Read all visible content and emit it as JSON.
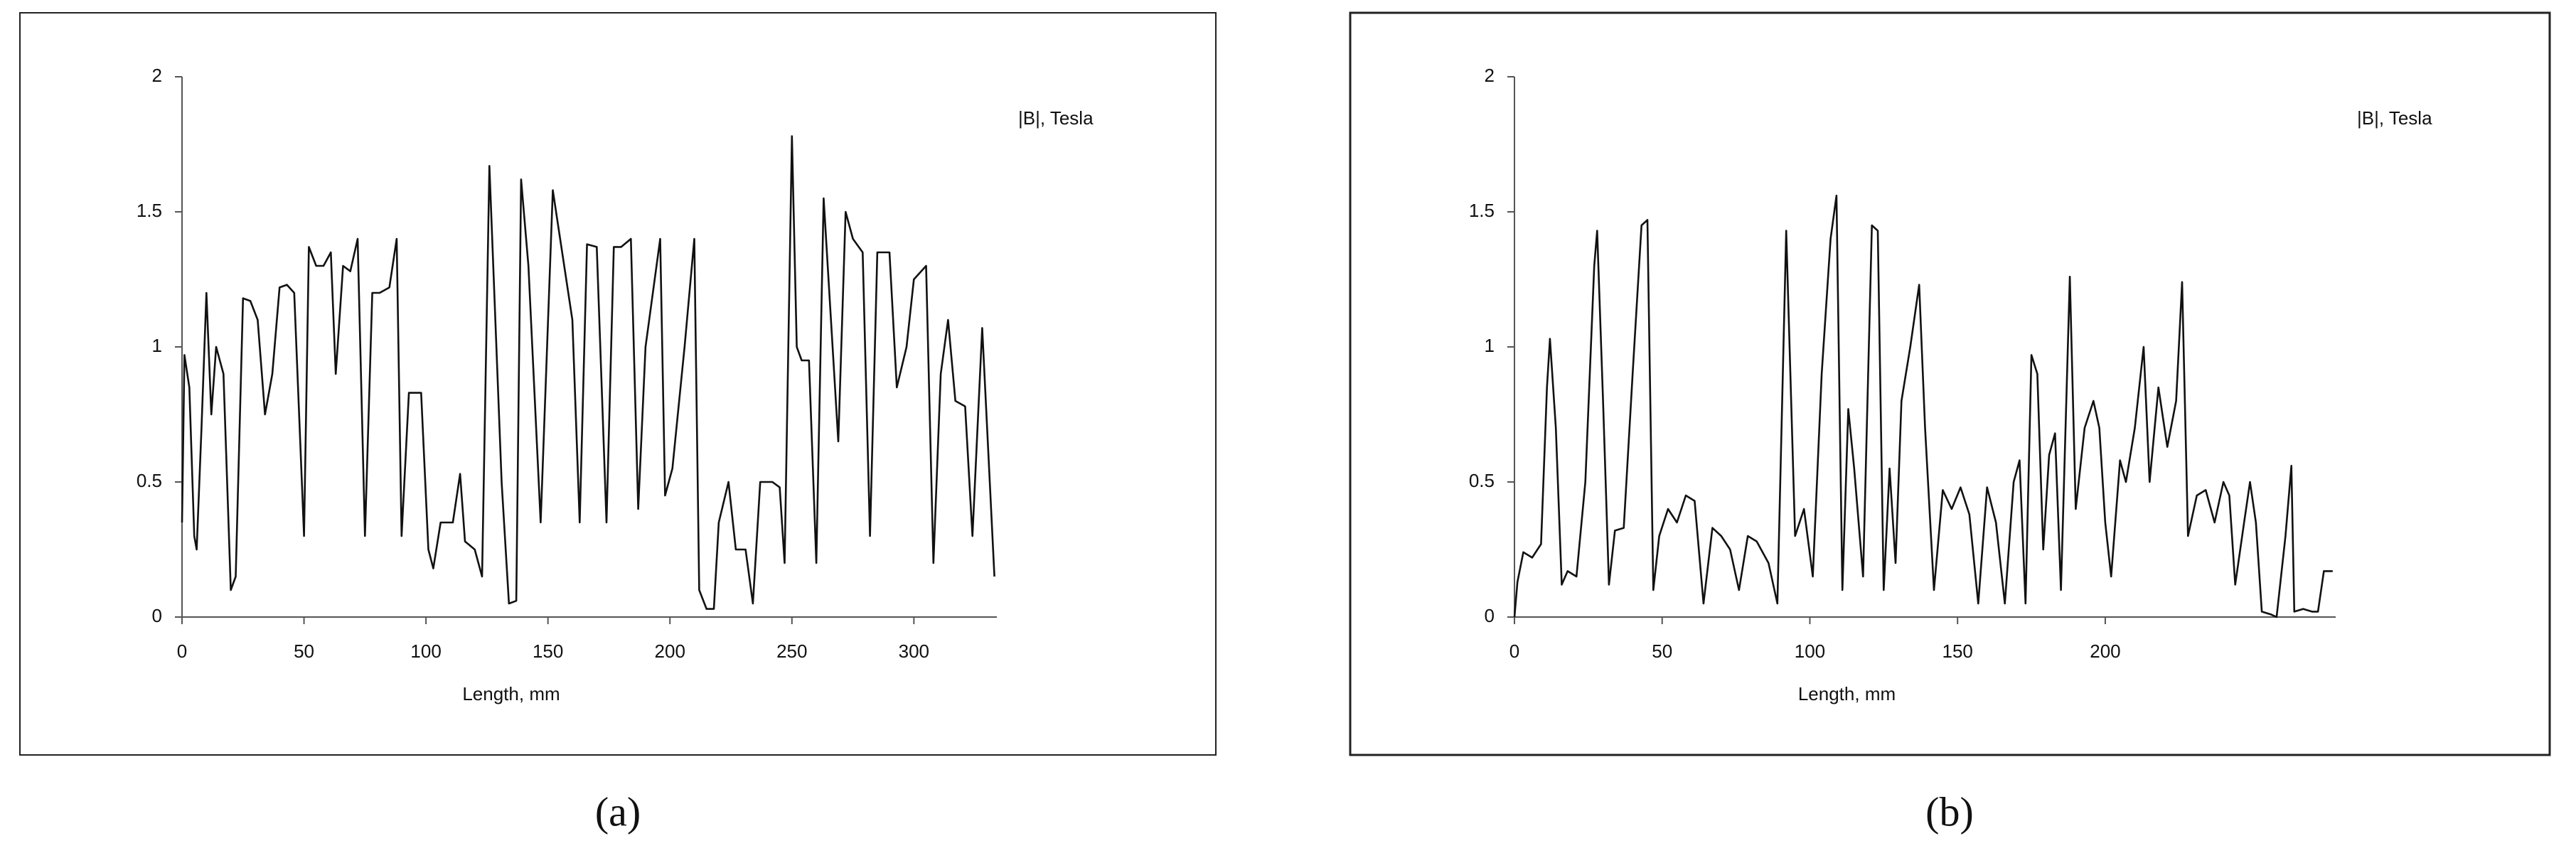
{
  "chart_data": [
    {
      "type": "line",
      "panel": "(a)",
      "legend": "|B|, Tesla",
      "x_label": "Length, mm",
      "xlim": [
        0,
        334
      ],
      "xticks": [
        0,
        50,
        100,
        150,
        200,
        250,
        300
      ],
      "ylim": [
        0,
        2
      ],
      "yticks": [
        0,
        0.5,
        1,
        1.5,
        2
      ],
      "x": [
        0,
        1,
        3,
        5,
        6,
        8,
        10,
        12,
        14,
        17,
        20,
        22,
        25,
        28,
        31,
        34,
        37,
        40,
        43,
        46,
        50,
        52,
        55,
        58,
        61,
        63,
        66,
        69,
        72,
        75,
        78,
        81,
        85,
        88,
        90,
        93,
        98,
        101,
        103,
        106,
        111,
        114,
        116,
        120,
        123,
        126,
        128,
        131,
        134,
        137,
        139,
        142,
        147,
        152,
        155,
        160,
        163,
        166,
        170,
        174,
        177,
        180,
        184,
        187,
        190,
        193,
        196,
        198,
        201,
        206,
        210,
        212,
        215,
        218,
        220,
        224,
        227,
        231,
        234,
        237,
        242,
        245,
        247,
        250,
        252,
        254,
        257,
        260,
        263,
        266,
        269,
        272,
        275,
        279,
        282,
        285,
        290,
        293,
        297,
        300,
        305,
        308,
        311,
        314,
        317,
        321,
        324,
        328,
        333
      ],
      "series": [
        {
          "color": "#111111",
          "values": [
            0.35,
            0.97,
            0.85,
            0.3,
            0.25,
            0.7,
            1.2,
            0.75,
            1.0,
            0.9,
            0.1,
            0.15,
            1.18,
            1.17,
            1.1,
            0.75,
            0.9,
            1.22,
            1.23,
            1.2,
            0.3,
            1.37,
            1.3,
            1.3,
            1.35,
            0.9,
            1.3,
            1.28,
            1.4,
            0.3,
            1.2,
            1.2,
            1.22,
            1.4,
            0.3,
            0.83,
            0.83,
            0.25,
            0.18,
            0.35,
            0.35,
            0.53,
            0.28,
            0.25,
            0.15,
            1.67,
            1.2,
            0.5,
            0.05,
            0.06,
            1.62,
            1.3,
            0.35,
            1.58,
            1.4,
            1.1,
            0.35,
            1.38,
            1.37,
            0.35,
            1.37,
            1.37,
            1.4,
            0.4,
            1.0,
            1.2,
            1.4,
            0.45,
            0.55,
            1.0,
            1.4,
            0.1,
            0.03,
            0.03,
            0.35,
            0.5,
            0.25,
            0.25,
            0.05,
            0.5,
            0.5,
            0.48,
            0.2,
            1.78,
            1.0,
            0.95,
            0.95,
            0.2,
            1.55,
            1.1,
            0.65,
            1.5,
            1.4,
            1.35,
            0.3,
            1.35,
            1.35,
            0.85,
            1.0,
            1.25,
            1.3,
            0.2,
            0.9,
            1.1,
            0.8,
            0.78,
            0.3,
            1.07,
            0.15
          ]
        }
      ]
    },
    {
      "type": "line",
      "panel": "(b)",
      "legend": "|B|, Tesla",
      "x_label": "Length, mm",
      "xlim": [
        0,
        278
      ],
      "xticks": [
        0,
        50,
        100,
        150,
        200
      ],
      "ylim": [
        0,
        2
      ],
      "yticks": [
        0,
        0.5,
        1,
        1.5,
        2
      ],
      "x": [
        0,
        1,
        3,
        6,
        9,
        11,
        12,
        14,
        16,
        18,
        21,
        24,
        27,
        28,
        30,
        32,
        34,
        37,
        40,
        43,
        45,
        47,
        49,
        52,
        55,
        58,
        61,
        64,
        67,
        70,
        73,
        76,
        79,
        82,
        86,
        89,
        92,
        95,
        98,
        101,
        104,
        107,
        109,
        111,
        113,
        115,
        118,
        121,
        123,
        125,
        127,
        129,
        131,
        134,
        137,
        139,
        142,
        145,
        148,
        151,
        154,
        157,
        160,
        163,
        166,
        169,
        171,
        173,
        175,
        177,
        179,
        181,
        183,
        185,
        188,
        190,
        193,
        196,
        198,
        200,
        202,
        205,
        207,
        210,
        213,
        215,
        218,
        221,
        224,
        226,
        228,
        231,
        234,
        237,
        240,
        242,
        244,
        247,
        249,
        251,
        253,
        256,
        258,
        261,
        263,
        264,
        267,
        270,
        272,
        274,
        277
      ],
      "series": [
        {
          "color": "#111111",
          "values": [
            0.0,
            0.13,
            0.24,
            0.22,
            0.27,
            0.85,
            1.03,
            0.7,
            0.12,
            0.17,
            0.15,
            0.5,
            1.3,
            1.43,
            0.8,
            0.12,
            0.32,
            0.33,
            0.9,
            1.45,
            1.47,
            0.1,
            0.3,
            0.4,
            0.35,
            0.45,
            0.43,
            0.05,
            0.33,
            0.3,
            0.25,
            0.1,
            0.3,
            0.28,
            0.2,
            0.05,
            1.43,
            0.3,
            0.4,
            0.15,
            0.9,
            1.4,
            1.56,
            0.1,
            0.77,
            0.55,
            0.15,
            1.45,
            1.43,
            0.1,
            0.55,
            0.2,
            0.8,
            1.0,
            1.23,
            0.7,
            0.1,
            0.47,
            0.4,
            0.48,
            0.38,
            0.05,
            0.48,
            0.35,
            0.05,
            0.5,
            0.58,
            0.05,
            0.97,
            0.9,
            0.25,
            0.6,
            0.68,
            0.1,
            1.26,
            0.4,
            0.7,
            0.8,
            0.7,
            0.35,
            0.15,
            0.58,
            0.5,
            0.7,
            1.0,
            0.5,
            0.85,
            0.63,
            0.8,
            1.24,
            0.3,
            0.45,
            0.47,
            0.35,
            0.5,
            0.45,
            0.12,
            0.35,
            0.5,
            0.35,
            0.02,
            0.01,
            0.0,
            0.3,
            0.56,
            0.02,
            0.03,
            0.02,
            0.02,
            0.17,
            0.17
          ]
        }
      ]
    }
  ]
}
